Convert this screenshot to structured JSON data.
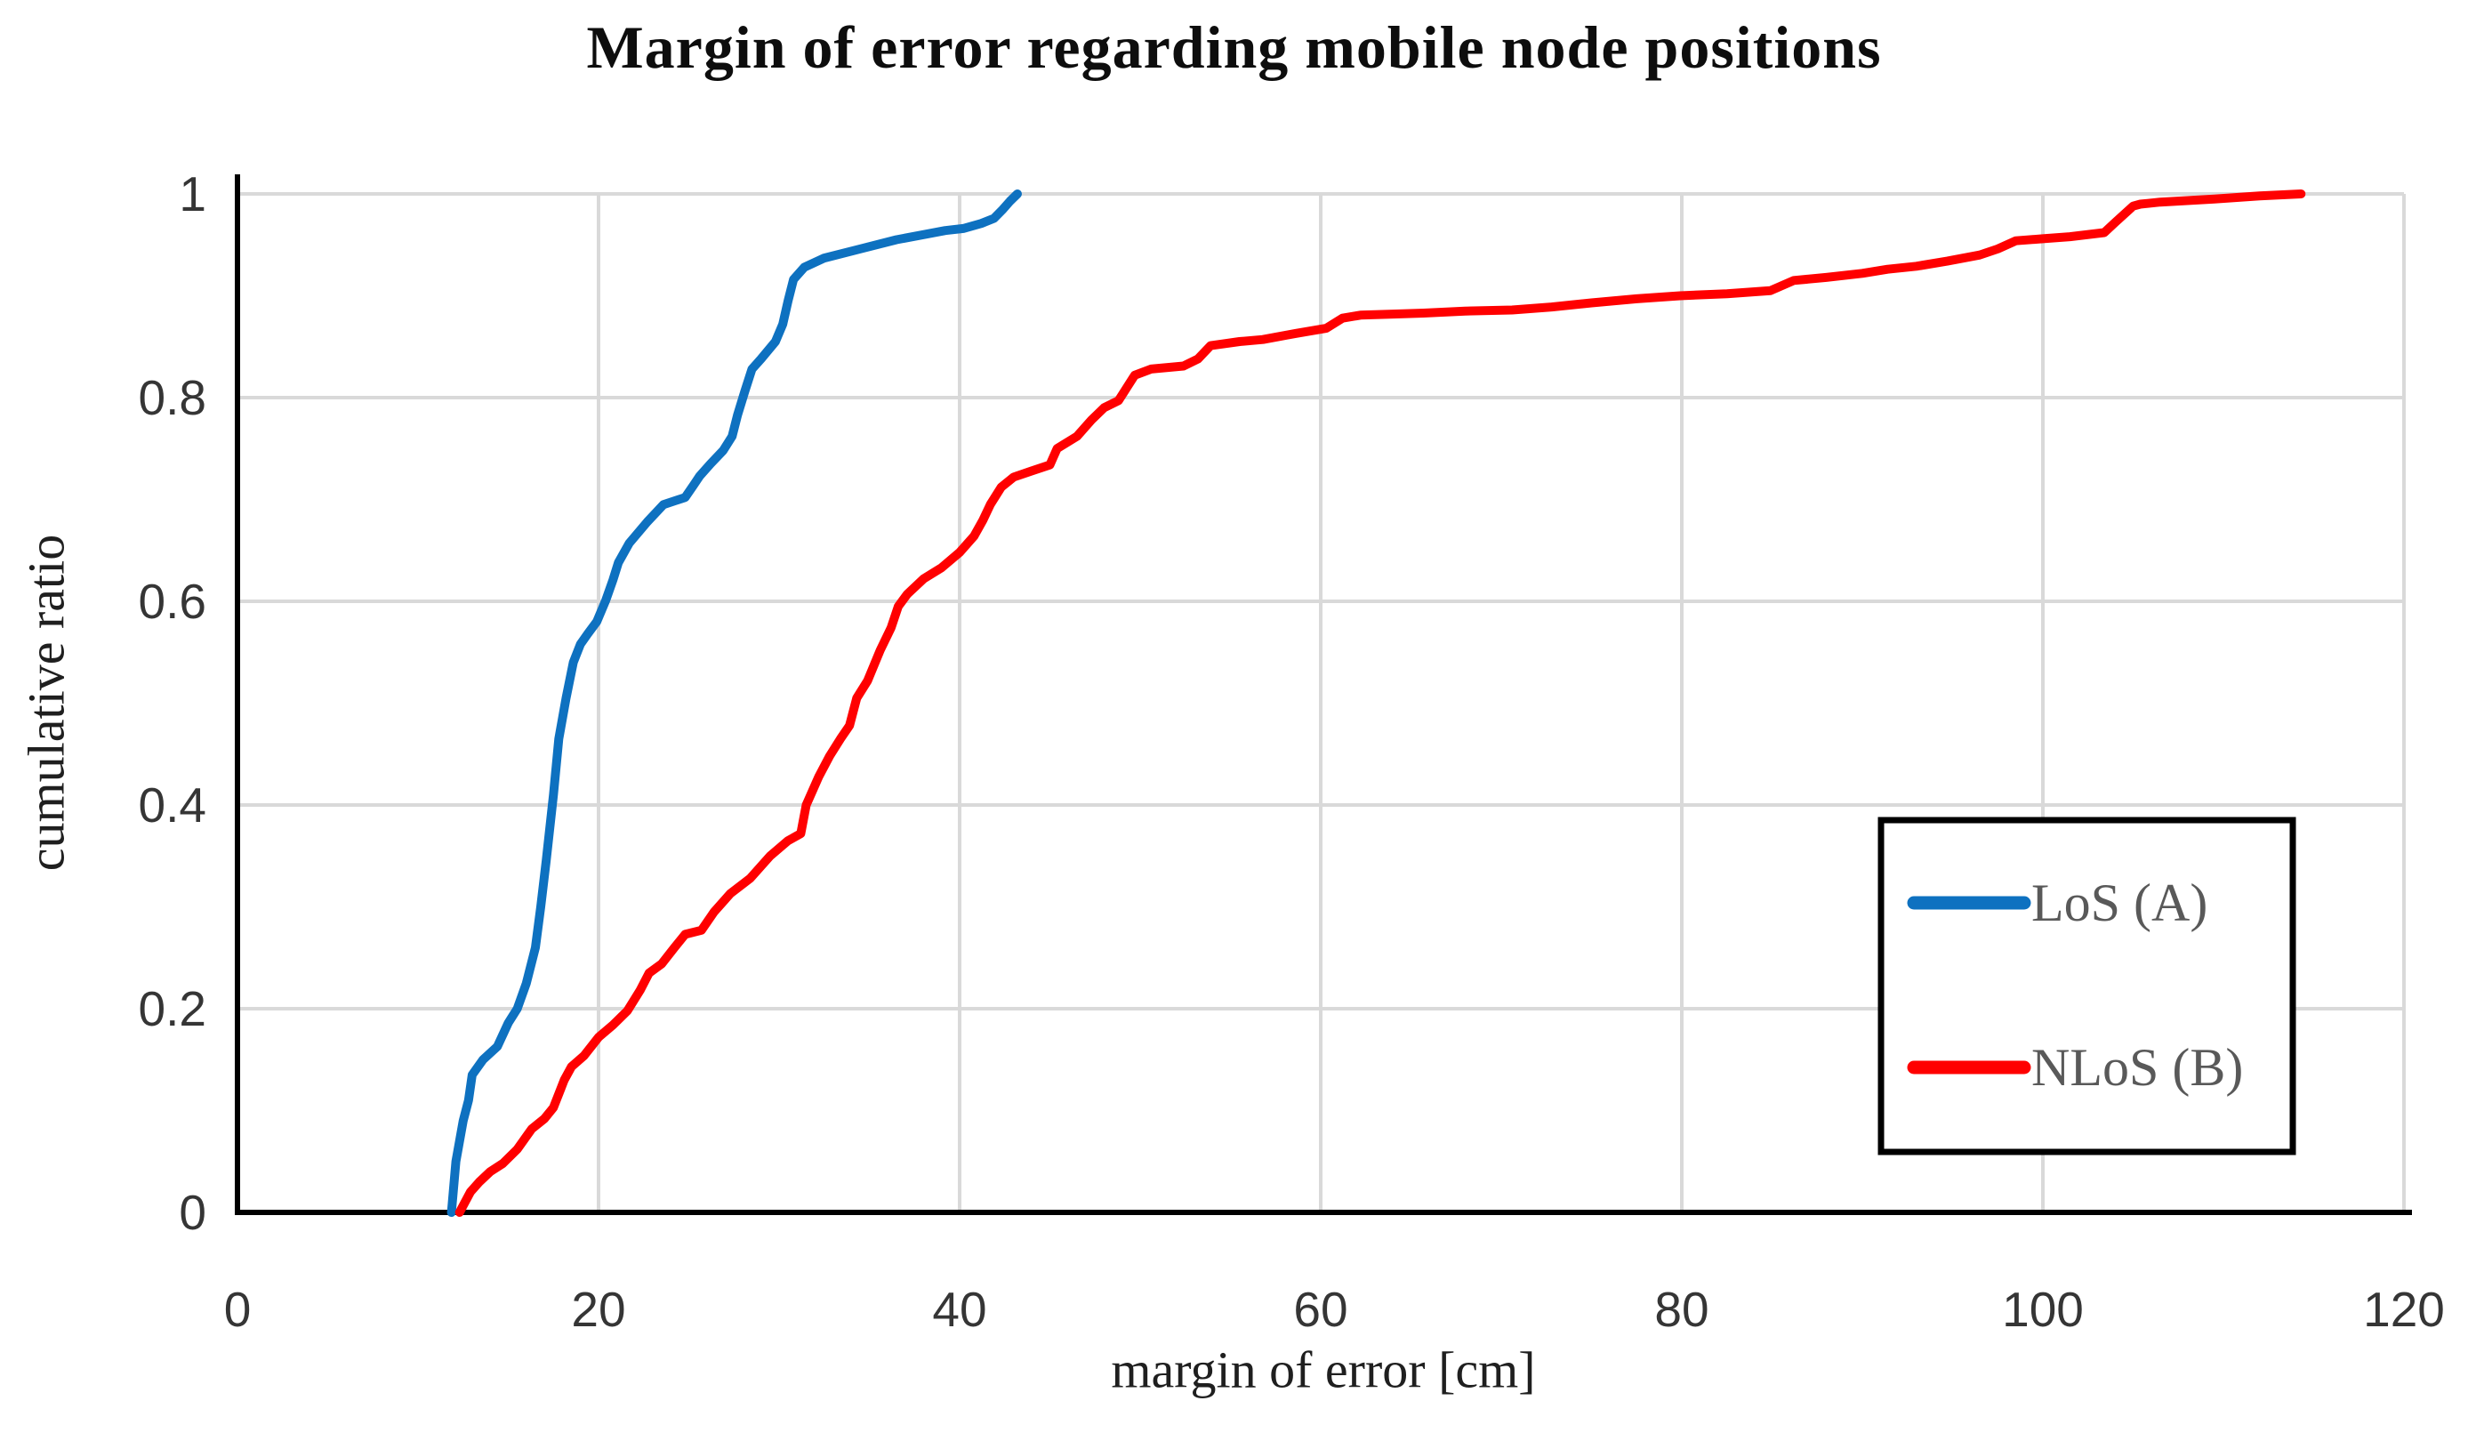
{
  "chart_data": {
    "type": "line",
    "title": "Margin of error regarding mobile node positions",
    "xlabel": "margin of error [cm]",
    "ylabel": "cumulative ratio",
    "xlim": [
      0,
      120
    ],
    "ylim": [
      0,
      1
    ],
    "x_ticks": [
      0,
      20,
      40,
      60,
      80,
      100,
      120
    ],
    "y_ticks": [
      0,
      0.2,
      0.4,
      0.6,
      0.8,
      1
    ],
    "y_tick_labels": [
      "0",
      "0.2",
      "0.4",
      "0.6",
      "0.8",
      "1"
    ],
    "grid": true,
    "legend_position": "middle-right",
    "series": [
      {
        "name": "LoS (A)",
        "color": "#0E71C0",
        "points": [
          [
            11.85,
            0
          ],
          [
            12.1,
            0.05
          ],
          [
            12.5,
            0.09
          ],
          [
            12.8,
            0.11
          ],
          [
            13.0,
            0.135
          ],
          [
            13.6,
            0.15
          ],
          [
            14.4,
            0.163
          ],
          [
            15.0,
            0.186
          ],
          [
            15.5,
            0.2
          ],
          [
            16.0,
            0.225
          ],
          [
            16.5,
            0.26
          ],
          [
            16.8,
            0.3
          ],
          [
            17.1,
            0.345
          ],
          [
            17.5,
            0.41
          ],
          [
            17.8,
            0.465
          ],
          [
            18.2,
            0.505
          ],
          [
            18.6,
            0.54
          ],
          [
            19.0,
            0.558
          ],
          [
            19.4,
            0.568
          ],
          [
            19.9,
            0.58
          ],
          [
            20.4,
            0.601
          ],
          [
            20.8,
            0.621
          ],
          [
            21.1,
            0.638
          ],
          [
            21.7,
            0.657
          ],
          [
            22.7,
            0.678
          ],
          [
            23.6,
            0.695
          ],
          [
            24.8,
            0.702
          ],
          [
            25.3,
            0.715
          ],
          [
            25.6,
            0.723
          ],
          [
            26.2,
            0.735
          ],
          [
            26.9,
            0.748
          ],
          [
            27.4,
            0.762
          ],
          [
            27.7,
            0.783
          ],
          [
            28.1,
            0.806
          ],
          [
            28.5,
            0.828
          ],
          [
            29.0,
            0.838
          ],
          [
            29.8,
            0.855
          ],
          [
            30.2,
            0.872
          ],
          [
            30.5,
            0.895
          ],
          [
            30.8,
            0.916
          ],
          [
            31.4,
            0.928
          ],
          [
            32.5,
            0.937
          ],
          [
            34.5,
            0.946
          ],
          [
            36.5,
            0.955
          ],
          [
            37.7,
            0.959
          ],
          [
            39.2,
            0.964
          ],
          [
            40.2,
            0.966
          ],
          [
            41.2,
            0.971
          ],
          [
            41.9,
            0.976
          ],
          [
            42.4,
            0.985
          ],
          [
            42.8,
            0.993
          ],
          [
            43.2,
            1.0
          ]
        ]
      },
      {
        "name": "NLoS (B)",
        "color": "#FF0000",
        "points": [
          [
            12.3,
            0
          ],
          [
            12.9,
            0.02
          ],
          [
            13.4,
            0.03
          ],
          [
            14.0,
            0.04
          ],
          [
            14.7,
            0.048
          ],
          [
            15.5,
            0.062
          ],
          [
            16.3,
            0.082
          ],
          [
            17.0,
            0.092
          ],
          [
            17.5,
            0.103
          ],
          [
            18.1,
            0.13
          ],
          [
            18.5,
            0.143
          ],
          [
            19.2,
            0.154
          ],
          [
            20.0,
            0.172
          ],
          [
            20.8,
            0.184
          ],
          [
            21.6,
            0.198
          ],
          [
            22.3,
            0.218
          ],
          [
            22.8,
            0.235
          ],
          [
            23.5,
            0.244
          ],
          [
            24.2,
            0.26
          ],
          [
            24.8,
            0.273
          ],
          [
            25.7,
            0.277
          ],
          [
            26.4,
            0.295
          ],
          [
            27.3,
            0.313
          ],
          [
            28.4,
            0.328
          ],
          [
            29.5,
            0.35
          ],
          [
            30.5,
            0.365
          ],
          [
            31.2,
            0.372
          ],
          [
            31.5,
            0.4
          ],
          [
            32.2,
            0.428
          ],
          [
            32.8,
            0.448
          ],
          [
            33.4,
            0.465
          ],
          [
            33.9,
            0.478
          ],
          [
            34.3,
            0.505
          ],
          [
            34.9,
            0.522
          ],
          [
            35.6,
            0.552
          ],
          [
            36.2,
            0.574
          ],
          [
            36.6,
            0.595
          ],
          [
            37.1,
            0.607
          ],
          [
            38.0,
            0.622
          ],
          [
            39.0,
            0.633
          ],
          [
            40.0,
            0.648
          ],
          [
            40.8,
            0.664
          ],
          [
            41.3,
            0.68
          ],
          [
            41.7,
            0.695
          ],
          [
            42.3,
            0.712
          ],
          [
            43.0,
            0.722
          ],
          [
            44.0,
            0.728
          ],
          [
            45.0,
            0.734
          ],
          [
            45.4,
            0.75
          ],
          [
            46.5,
            0.762
          ],
          [
            47.3,
            0.778
          ],
          [
            48.0,
            0.79
          ],
          [
            48.8,
            0.797
          ],
          [
            49.7,
            0.822
          ],
          [
            50.6,
            0.828
          ],
          [
            52.4,
            0.831
          ],
          [
            53.2,
            0.838
          ],
          [
            53.9,
            0.851
          ],
          [
            55.5,
            0.855
          ],
          [
            56.8,
            0.857
          ],
          [
            58.6,
            0.863
          ],
          [
            60.3,
            0.868
          ],
          [
            61.2,
            0.878
          ],
          [
            62.2,
            0.881
          ],
          [
            64.0,
            0.882
          ],
          [
            65.7,
            0.883
          ],
          [
            68.0,
            0.885
          ],
          [
            70.6,
            0.886
          ],
          [
            72.8,
            0.889
          ],
          [
            75.0,
            0.893
          ],
          [
            77.5,
            0.897
          ],
          [
            79.9,
            0.9
          ],
          [
            82.5,
            0.902
          ],
          [
            84.9,
            0.905
          ],
          [
            86.2,
            0.915
          ],
          [
            88.0,
            0.918
          ],
          [
            90.0,
            0.922
          ],
          [
            91.4,
            0.926
          ],
          [
            93.0,
            0.929
          ],
          [
            94.7,
            0.934
          ],
          [
            96.5,
            0.94
          ],
          [
            97.5,
            0.946
          ],
          [
            98.5,
            0.954
          ],
          [
            100.0,
            0.956
          ],
          [
            101.5,
            0.958
          ],
          [
            103.4,
            0.962
          ],
          [
            104.0,
            0.972
          ],
          [
            105.0,
            0.988
          ],
          [
            105.4,
            0.99
          ],
          [
            106.5,
            0.992
          ],
          [
            109.5,
            0.995
          ],
          [
            112.0,
            0.998
          ],
          [
            114.3,
            1.0
          ]
        ]
      }
    ]
  },
  "legend": {
    "items": [
      {
        "label": "LoS (A)"
      },
      {
        "label": "NLoS (B)"
      }
    ]
  },
  "colors": {
    "series_los": "#0E71C0",
    "series_nlos": "#FF0000",
    "gridline": "#D9D9D9",
    "axis": "#000000",
    "tick_text": "#353535",
    "axis_title_text": "#1F1F1F",
    "legend_text": "#595959",
    "title_text": "#0D0D0D",
    "background": "#FFFFFF"
  }
}
